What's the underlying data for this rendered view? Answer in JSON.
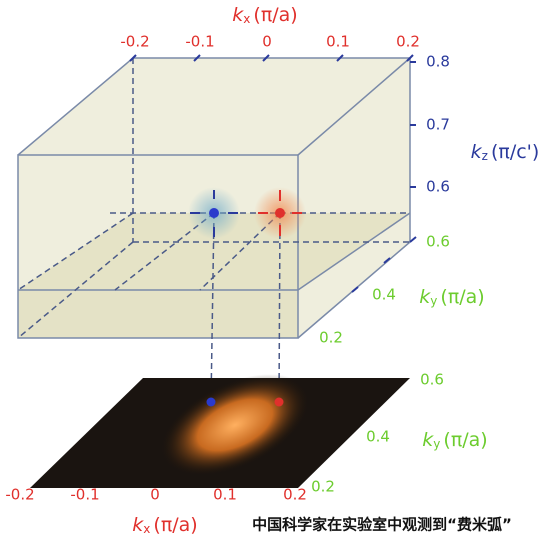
{
  "top_axis": {
    "symbol": "k",
    "subscript": "x",
    "unit": "(π/a)",
    "ticks": [
      "-0.2",
      "-0.1",
      "0",
      "0.1",
      "0.2"
    ]
  },
  "kz_axis": {
    "symbol": "k",
    "subscript": "z",
    "unit": "(π/c')",
    "ticks": [
      "0.8",
      "0.7",
      "0.6"
    ]
  },
  "ky_axis": {
    "symbol": "k",
    "subscript": "y",
    "unit": "(π/a)",
    "ticks": [
      "0.6",
      "0.4",
      "0.2"
    ]
  },
  "bottom_ky_axis": {
    "symbol": "k",
    "subscript": "y",
    "unit": "(π/a)",
    "ticks": [
      "0.6",
      "0.4",
      "0.2"
    ]
  },
  "bottom_kx_axis": {
    "symbol": "k",
    "subscript": "x",
    "unit": "(π/a)",
    "ticks": [
      "-0.2",
      "-0.1",
      "0",
      "0.1",
      "0.2"
    ]
  },
  "caption": "中国科学家在实验室中观测到“费米弧”"
}
